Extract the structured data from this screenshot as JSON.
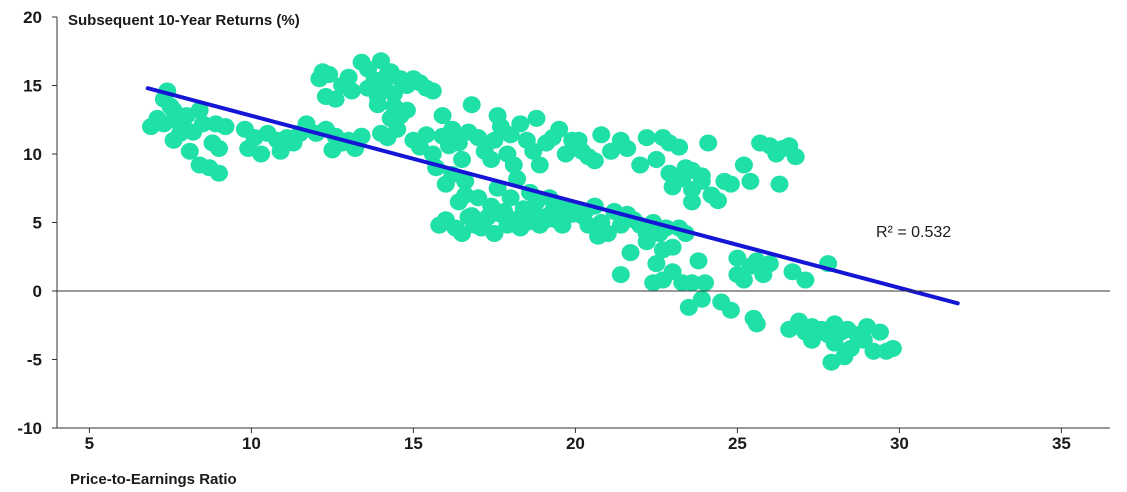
{
  "chart_data": {
    "type": "scatter",
    "ylabel": "Subsequent 10-Year Returns (%)",
    "xlabel": "Price-to-Earnings Ratio",
    "xlim": [
      4,
      36.5
    ],
    "ylim": [
      -10,
      20
    ],
    "x_ticks": [
      "5",
      "10",
      "15",
      "20",
      "25",
      "30",
      "35"
    ],
    "y_ticks": [
      "20",
      "15",
      "10",
      "5",
      "0",
      "-5",
      "-10"
    ],
    "grid": false,
    "colors": {
      "points": "#1fe0a6",
      "trendline": "#1515d6",
      "axes": "#333333"
    },
    "annotation": "R² = 0.532",
    "trendline": {
      "x": [
        6.8,
        31.8
      ],
      "y": [
        14.8,
        -0.9
      ]
    },
    "points": [
      [
        6.9,
        12.0
      ],
      [
        7.1,
        12.6
      ],
      [
        7.3,
        14.0
      ],
      [
        7.4,
        14.6
      ],
      [
        7.5,
        13.5
      ],
      [
        7.3,
        12.2
      ],
      [
        7.6,
        13.2
      ],
      [
        7.7,
        12.4
      ],
      [
        7.8,
        11.5
      ],
      [
        8.0,
        12.8
      ],
      [
        8.1,
        10.2
      ],
      [
        8.2,
        11.6
      ],
      [
        8.4,
        13.2
      ],
      [
        8.5,
        12.2
      ],
      [
        8.4,
        9.2
      ],
      [
        8.7,
        9.0
      ],
      [
        8.8,
        10.8
      ],
      [
        9.0,
        8.6
      ],
      [
        9.0,
        10.4
      ],
      [
        8.9,
        12.2
      ],
      [
        9.2,
        12.0
      ],
      [
        7.6,
        11.0
      ],
      [
        7.9,
        12.0
      ],
      [
        9.8,
        11.8
      ],
      [
        9.9,
        10.4
      ],
      [
        10.1,
        11.2
      ],
      [
        10.3,
        10.0
      ],
      [
        10.5,
        11.5
      ],
      [
        10.8,
        11.0
      ],
      [
        10.9,
        10.2
      ],
      [
        11.1,
        11.2
      ],
      [
        11.3,
        10.8
      ],
      [
        11.5,
        11.5
      ],
      [
        11.7,
        12.2
      ],
      [
        12.0,
        11.5
      ],
      [
        12.3,
        11.8
      ],
      [
        12.5,
        10.3
      ],
      [
        12.6,
        11.3
      ],
      [
        12.8,
        10.8
      ],
      [
        13.0,
        11.0
      ],
      [
        13.2,
        10.4
      ],
      [
        13.4,
        11.3
      ],
      [
        12.1,
        15.5
      ],
      [
        12.2,
        16.0
      ],
      [
        12.3,
        14.2
      ],
      [
        12.4,
        15.8
      ],
      [
        12.6,
        14.0
      ],
      [
        12.8,
        15.0
      ],
      [
        13.0,
        15.6
      ],
      [
        13.1,
        14.6
      ],
      [
        13.4,
        16.7
      ],
      [
        13.6,
        16.2
      ],
      [
        13.8,
        15.4
      ],
      [
        13.9,
        14.2
      ],
      [
        14.0,
        16.8
      ],
      [
        14.1,
        15.2
      ],
      [
        14.2,
        15.8
      ],
      [
        14.4,
        14.4
      ],
      [
        14.4,
        13.5
      ],
      [
        14.3,
        12.6
      ],
      [
        13.9,
        13.6
      ],
      [
        14.6,
        15.5
      ],
      [
        14.8,
        15.0
      ],
      [
        15.0,
        15.5
      ],
      [
        15.2,
        15.2
      ],
      [
        15.4,
        14.8
      ],
      [
        15.6,
        14.6
      ],
      [
        14.0,
        11.5
      ],
      [
        14.2,
        11.2
      ],
      [
        14.5,
        11.8
      ],
      [
        14.6,
        12.8
      ],
      [
        14.8,
        13.2
      ],
      [
        13.6,
        14.8
      ],
      [
        14.3,
        16.0
      ],
      [
        15.0,
        11.0
      ],
      [
        15.2,
        10.5
      ],
      [
        15.4,
        11.4
      ],
      [
        15.6,
        10.0
      ],
      [
        15.7,
        9.0
      ],
      [
        15.9,
        11.3
      ],
      [
        15.9,
        12.8
      ],
      [
        16.1,
        10.6
      ],
      [
        16.2,
        11.8
      ],
      [
        16.4,
        10.8
      ],
      [
        16.5,
        9.6
      ],
      [
        16.7,
        11.6
      ],
      [
        16.6,
        8.0
      ],
      [
        16.8,
        13.6
      ],
      [
        17.0,
        11.2
      ],
      [
        17.2,
        10.2
      ],
      [
        17.4,
        9.6
      ],
      [
        17.5,
        11.0
      ],
      [
        17.6,
        12.8
      ],
      [
        17.7,
        12.0
      ],
      [
        17.9,
        10.0
      ],
      [
        18.0,
        11.4
      ],
      [
        18.1,
        9.2
      ],
      [
        18.3,
        12.2
      ],
      [
        18.5,
        11.0
      ],
      [
        18.7,
        10.2
      ],
      [
        18.8,
        12.6
      ],
      [
        18.9,
        9.2
      ],
      [
        19.1,
        10.8
      ],
      [
        19.3,
        11.2
      ],
      [
        19.5,
        11.8
      ],
      [
        19.7,
        10.0
      ],
      [
        19.9,
        11.0
      ],
      [
        20.1,
        11.0
      ],
      [
        20.2,
        10.2
      ],
      [
        20.4,
        9.8
      ],
      [
        20.6,
        9.5
      ],
      [
        20.8,
        11.4
      ],
      [
        21.1,
        10.2
      ],
      [
        21.4,
        11.0
      ],
      [
        21.6,
        10.4
      ],
      [
        22.0,
        9.2
      ],
      [
        22.2,
        11.2
      ],
      [
        22.5,
        9.6
      ],
      [
        22.7,
        11.2
      ],
      [
        22.9,
        10.8
      ],
      [
        23.2,
        10.5
      ],
      [
        23.4,
        9.0
      ],
      [
        23.6,
        8.8
      ],
      [
        23.9,
        8.4
      ],
      [
        24.1,
        10.8
      ],
      [
        22.9,
        8.6
      ],
      [
        16.0,
        7.8
      ],
      [
        16.2,
        8.5
      ],
      [
        16.4,
        6.5
      ],
      [
        16.6,
        7.0
      ],
      [
        16.8,
        5.5
      ],
      [
        17.0,
        6.8
      ],
      [
        17.2,
        5.2
      ],
      [
        17.4,
        6.2
      ],
      [
        17.6,
        7.5
      ],
      [
        17.8,
        5.8
      ],
      [
        18.0,
        6.8
      ],
      [
        18.2,
        8.2
      ],
      [
        18.4,
        6.0
      ],
      [
        18.6,
        7.2
      ],
      [
        18.8,
        6.5
      ],
      [
        19.0,
        5.4
      ],
      [
        19.2,
        6.8
      ],
      [
        19.4,
        5.2
      ],
      [
        19.6,
        6.2
      ],
      [
        19.8,
        5.6
      ],
      [
        20.0,
        6.0
      ],
      [
        20.2,
        5.5
      ],
      [
        20.4,
        4.8
      ],
      [
        20.6,
        6.2
      ],
      [
        20.8,
        5.0
      ],
      [
        21.0,
        4.2
      ],
      [
        21.2,
        5.8
      ],
      [
        21.4,
        4.8
      ],
      [
        21.6,
        5.6
      ],
      [
        21.8,
        5.2
      ],
      [
        22.0,
        4.8
      ],
      [
        22.2,
        4.2
      ],
      [
        22.4,
        5.0
      ],
      [
        22.6,
        4.2
      ],
      [
        22.8,
        4.6
      ],
      [
        23.0,
        3.2
      ],
      [
        23.2,
        4.6
      ],
      [
        23.4,
        4.2
      ],
      [
        23.0,
        7.6
      ],
      [
        23.3,
        8.2
      ],
      [
        23.6,
        7.4
      ],
      [
        23.9,
        8.0
      ],
      [
        24.2,
        7.0
      ],
      [
        24.4,
        6.6
      ],
      [
        24.6,
        8.0
      ],
      [
        24.8,
        7.8
      ],
      [
        23.6,
        6.5
      ],
      [
        25.2,
        9.2
      ],
      [
        25.4,
        8.0
      ],
      [
        25.7,
        10.8
      ],
      [
        26.0,
        10.6
      ],
      [
        26.2,
        10.0
      ],
      [
        26.4,
        10.4
      ],
      [
        26.6,
        10.6
      ],
      [
        26.8,
        9.8
      ],
      [
        26.3,
        7.8
      ],
      [
        15.8,
        4.8
      ],
      [
        16.0,
        5.2
      ],
      [
        16.3,
        4.6
      ],
      [
        16.5,
        4.2
      ],
      [
        16.7,
        5.4
      ],
      [
        16.9,
        4.8
      ],
      [
        17.1,
        4.6
      ],
      [
        17.3,
        5.4
      ],
      [
        17.5,
        4.2
      ],
      [
        17.7,
        5.6
      ],
      [
        17.9,
        4.8
      ],
      [
        18.1,
        5.2
      ],
      [
        18.3,
        4.6
      ],
      [
        18.5,
        5.0
      ],
      [
        18.7,
        5.6
      ],
      [
        18.9,
        4.8
      ],
      [
        19.1,
        5.2
      ],
      [
        19.3,
        5.8
      ],
      [
        19.6,
        4.8
      ],
      [
        19.9,
        5.6
      ],
      [
        20.3,
        5.8
      ],
      [
        20.7,
        4.0
      ],
      [
        21.4,
        1.2
      ],
      [
        21.7,
        2.8
      ],
      [
        22.2,
        3.6
      ],
      [
        22.5,
        2.0
      ],
      [
        22.7,
        3.0
      ],
      [
        22.4,
        0.6
      ],
      [
        22.7,
        0.8
      ],
      [
        23.0,
        1.4
      ],
      [
        23.3,
        0.6
      ],
      [
        23.6,
        0.6
      ],
      [
        23.8,
        2.2
      ],
      [
        24.0,
        0.6
      ],
      [
        23.5,
        -1.2
      ],
      [
        23.9,
        -0.6
      ],
      [
        24.5,
        -0.8
      ],
      [
        24.8,
        -1.4
      ],
      [
        25.0,
        2.4
      ],
      [
        25.0,
        1.2
      ],
      [
        25.2,
        0.8
      ],
      [
        25.4,
        1.8
      ],
      [
        25.6,
        2.2
      ],
      [
        25.8,
        1.2
      ],
      [
        26.0,
        2.0
      ],
      [
        25.5,
        -2.0
      ],
      [
        25.6,
        -2.4
      ],
      [
        26.7,
        1.4
      ],
      [
        27.1,
        0.8
      ],
      [
        27.8,
        2.0
      ],
      [
        26.6,
        -2.8
      ],
      [
        26.9,
        -2.2
      ],
      [
        27.1,
        -3.0
      ],
      [
        27.3,
        -2.6
      ],
      [
        27.3,
        -3.6
      ],
      [
        27.6,
        -2.8
      ],
      [
        27.8,
        -3.2
      ],
      [
        28.0,
        -2.8
      ],
      [
        28.0,
        -2.4
      ],
      [
        28.2,
        -3.0
      ],
      [
        28.4,
        -2.8
      ],
      [
        28.5,
        -4.2
      ],
      [
        28.7,
        -3.2
      ],
      [
        28.9,
        -3.6
      ],
      [
        29.0,
        -2.6
      ],
      [
        29.2,
        -4.4
      ],
      [
        29.4,
        -3.0
      ],
      [
        29.6,
        -4.4
      ],
      [
        29.8,
        -4.2
      ],
      [
        28.0,
        -3.8
      ],
      [
        27.9,
        -5.2
      ],
      [
        28.3,
        -4.8
      ]
    ]
  }
}
